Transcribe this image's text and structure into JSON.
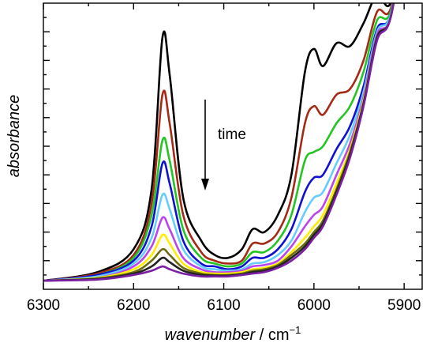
{
  "chart_data": {
    "type": "line",
    "title": "",
    "xlabel": "wavenumber",
    "xlabel_suffix": " / cm",
    "xlabel_exp": "−1",
    "ylabel": "absorbance",
    "x_reversed": true,
    "xlim": [
      6300,
      5880
    ],
    "ylim": [
      0,
      1
    ],
    "x_ticks": [
      6300,
      6200,
      6100,
      6000,
      5900
    ],
    "y_ticks_labeled": false,
    "grid": false,
    "annotation": {
      "text": "time",
      "arrow": "down"
    },
    "series": [
      {
        "color": "#000000",
        "values": [
          [
            6300,
            0.03
          ],
          [
            6240,
            0.06
          ],
          [
            6200,
            0.14
          ],
          [
            6180,
            0.35
          ],
          [
            6168,
            0.88
          ],
          [
            6160,
            0.75
          ],
          [
            6145,
            0.32
          ],
          [
            6125,
            0.17
          ],
          [
            6110,
            0.12
          ],
          [
            6095,
            0.11
          ],
          [
            6080,
            0.14
          ],
          [
            6068,
            0.21
          ],
          [
            6055,
            0.2
          ],
          [
            6040,
            0.26
          ],
          [
            6025,
            0.4
          ],
          [
            6010,
            0.76
          ],
          [
            6000,
            0.84
          ],
          [
            5990,
            0.78
          ],
          [
            5975,
            0.86
          ],
          [
            5960,
            0.85
          ],
          [
            5945,
            0.93
          ],
          [
            5930,
            1.03
          ],
          [
            5915,
            1.0
          ],
          [
            5895,
            1.26
          ]
        ]
      },
      {
        "color": "#a52a16",
        "values": [
          [
            6300,
            0.03
          ],
          [
            6240,
            0.055
          ],
          [
            6200,
            0.12
          ],
          [
            6180,
            0.3
          ],
          [
            6168,
            0.68
          ],
          [
            6160,
            0.58
          ],
          [
            6145,
            0.26
          ],
          [
            6125,
            0.13
          ],
          [
            6110,
            0.1
          ],
          [
            6095,
            0.09
          ],
          [
            6080,
            0.1
          ],
          [
            6068,
            0.16
          ],
          [
            6055,
            0.16
          ],
          [
            6040,
            0.2
          ],
          [
            6025,
            0.32
          ],
          [
            6010,
            0.58
          ],
          [
            6000,
            0.64
          ],
          [
            5990,
            0.61
          ],
          [
            5975,
            0.68
          ],
          [
            5960,
            0.7
          ],
          [
            5945,
            0.8
          ],
          [
            5930,
            0.97
          ],
          [
            5915,
            0.98
          ],
          [
            5895,
            1.27
          ]
        ]
      },
      {
        "color": "#22c522",
        "values": [
          [
            6300,
            0.03
          ],
          [
            6240,
            0.05
          ],
          [
            6200,
            0.11
          ],
          [
            6180,
            0.26
          ],
          [
            6168,
            0.52
          ],
          [
            6160,
            0.45
          ],
          [
            6145,
            0.21
          ],
          [
            6125,
            0.11
          ],
          [
            6110,
            0.09
          ],
          [
            6095,
            0.08
          ],
          [
            6080,
            0.09
          ],
          [
            6068,
            0.13
          ],
          [
            6055,
            0.13
          ],
          [
            6040,
            0.17
          ],
          [
            6025,
            0.26
          ],
          [
            6010,
            0.45
          ],
          [
            6000,
            0.48
          ],
          [
            5990,
            0.5
          ],
          [
            5975,
            0.58
          ],
          [
            5960,
            0.64
          ],
          [
            5945,
            0.76
          ],
          [
            5930,
            0.94
          ],
          [
            5915,
            0.97
          ],
          [
            5895,
            1.28
          ]
        ]
      },
      {
        "color": "#1010d0",
        "values": [
          [
            6300,
            0.03
          ],
          [
            6240,
            0.05
          ],
          [
            6200,
            0.1
          ],
          [
            6180,
            0.22
          ],
          [
            6168,
            0.44
          ],
          [
            6160,
            0.37
          ],
          [
            6145,
            0.17
          ],
          [
            6125,
            0.09
          ],
          [
            6110,
            0.08
          ],
          [
            6095,
            0.07
          ],
          [
            6080,
            0.08
          ],
          [
            6068,
            0.11
          ],
          [
            6055,
            0.11
          ],
          [
            6040,
            0.14
          ],
          [
            6025,
            0.21
          ],
          [
            6010,
            0.34
          ],
          [
            6000,
            0.39
          ],
          [
            5990,
            0.4
          ],
          [
            5975,
            0.49
          ],
          [
            5960,
            0.57
          ],
          [
            5945,
            0.71
          ],
          [
            5930,
            0.91
          ],
          [
            5915,
            0.96
          ],
          [
            5895,
            1.29
          ]
        ]
      },
      {
        "color": "#66ccff",
        "values": [
          [
            6300,
            0.03
          ],
          [
            6240,
            0.045
          ],
          [
            6200,
            0.09
          ],
          [
            6180,
            0.18
          ],
          [
            6168,
            0.33
          ],
          [
            6160,
            0.28
          ],
          [
            6145,
            0.14
          ],
          [
            6125,
            0.08
          ],
          [
            6110,
            0.07
          ],
          [
            6095,
            0.065
          ],
          [
            6080,
            0.07
          ],
          [
            6068,
            0.09
          ],
          [
            6055,
            0.095
          ],
          [
            6040,
            0.12
          ],
          [
            6025,
            0.17
          ],
          [
            6010,
            0.27
          ],
          [
            6000,
            0.32
          ],
          [
            5990,
            0.34
          ],
          [
            5975,
            0.44
          ],
          [
            5960,
            0.54
          ],
          [
            5945,
            0.69
          ],
          [
            5930,
            0.9
          ],
          [
            5915,
            0.96
          ],
          [
            5895,
            1.3
          ]
        ]
      },
      {
        "color": "#bb44ee",
        "values": [
          [
            6300,
            0.03
          ],
          [
            6240,
            0.04
          ],
          [
            6200,
            0.08
          ],
          [
            6180,
            0.15
          ],
          [
            6168,
            0.25
          ],
          [
            6160,
            0.21
          ],
          [
            6145,
            0.11
          ],
          [
            6125,
            0.07
          ],
          [
            6110,
            0.06
          ],
          [
            6095,
            0.06
          ],
          [
            6080,
            0.065
          ],
          [
            6068,
            0.08
          ],
          [
            6055,
            0.085
          ],
          [
            6040,
            0.1
          ],
          [
            6025,
            0.15
          ],
          [
            6010,
            0.22
          ],
          [
            6000,
            0.26
          ],
          [
            5990,
            0.29
          ],
          [
            5975,
            0.4
          ],
          [
            5960,
            0.51
          ],
          [
            5945,
            0.67
          ],
          [
            5930,
            0.89
          ],
          [
            5915,
            0.95
          ],
          [
            5895,
            1.3
          ]
        ]
      },
      {
        "color": "#ffee00",
        "values": [
          [
            6300,
            0.03
          ],
          [
            6240,
            0.04
          ],
          [
            6200,
            0.07
          ],
          [
            6180,
            0.12
          ],
          [
            6168,
            0.19
          ],
          [
            6160,
            0.16
          ],
          [
            6145,
            0.09
          ],
          [
            6125,
            0.06
          ],
          [
            6110,
            0.055
          ],
          [
            6095,
            0.055
          ],
          [
            6080,
            0.06
          ],
          [
            6068,
            0.07
          ],
          [
            6055,
            0.075
          ],
          [
            6040,
            0.09
          ],
          [
            6025,
            0.13
          ],
          [
            6010,
            0.18
          ],
          [
            6000,
            0.22
          ],
          [
            5990,
            0.26
          ],
          [
            5975,
            0.37
          ],
          [
            5960,
            0.49
          ],
          [
            5945,
            0.66
          ],
          [
            5930,
            0.88
          ],
          [
            5915,
            0.95
          ],
          [
            5895,
            1.31
          ]
        ]
      },
      {
        "color": "#6b6b10",
        "values": [
          [
            6300,
            0.03
          ],
          [
            6240,
            0.038
          ],
          [
            6200,
            0.06
          ],
          [
            6180,
            0.1
          ],
          [
            6168,
            0.14
          ],
          [
            6160,
            0.12
          ],
          [
            6145,
            0.075
          ],
          [
            6125,
            0.055
          ],
          [
            6110,
            0.05
          ],
          [
            6095,
            0.05
          ],
          [
            6080,
            0.055
          ],
          [
            6068,
            0.065
          ],
          [
            6055,
            0.07
          ],
          [
            6040,
            0.085
          ],
          [
            6025,
            0.12
          ],
          [
            6010,
            0.16
          ],
          [
            6000,
            0.2
          ],
          [
            5990,
            0.24
          ],
          [
            5975,
            0.35
          ],
          [
            5960,
            0.48
          ],
          [
            5945,
            0.65
          ],
          [
            5930,
            0.88
          ],
          [
            5915,
            0.95
          ],
          [
            5895,
            1.31
          ]
        ]
      },
      {
        "color": "#222222",
        "values": [
          [
            6300,
            0.03
          ],
          [
            6240,
            0.036
          ],
          [
            6200,
            0.055
          ],
          [
            6180,
            0.08
          ],
          [
            6168,
            0.11
          ],
          [
            6160,
            0.095
          ],
          [
            6145,
            0.065
          ],
          [
            6125,
            0.05
          ],
          [
            6110,
            0.048
          ],
          [
            6095,
            0.048
          ],
          [
            6080,
            0.052
          ],
          [
            6068,
            0.06
          ],
          [
            6055,
            0.065
          ],
          [
            6040,
            0.08
          ],
          [
            6025,
            0.11
          ],
          [
            6010,
            0.15
          ],
          [
            6000,
            0.19
          ],
          [
            5990,
            0.23
          ],
          [
            5975,
            0.34
          ],
          [
            5960,
            0.47
          ],
          [
            5945,
            0.65
          ],
          [
            5930,
            0.88
          ],
          [
            5915,
            0.95
          ],
          [
            5895,
            1.32
          ]
        ]
      },
      {
        "color": "#7a1fa2",
        "values": [
          [
            6300,
            0.03
          ],
          [
            6240,
            0.034
          ],
          [
            6200,
            0.05
          ],
          [
            6180,
            0.065
          ],
          [
            6168,
            0.08
          ],
          [
            6160,
            0.07
          ],
          [
            6145,
            0.055
          ],
          [
            6125,
            0.045
          ],
          [
            6110,
            0.045
          ],
          [
            6095,
            0.045
          ],
          [
            6080,
            0.05
          ],
          [
            6068,
            0.055
          ],
          [
            6055,
            0.06
          ],
          [
            6040,
            0.075
          ],
          [
            6025,
            0.1
          ],
          [
            6010,
            0.14
          ],
          [
            6000,
            0.18
          ],
          [
            5990,
            0.22
          ],
          [
            5975,
            0.33
          ],
          [
            5960,
            0.46
          ],
          [
            5945,
            0.64
          ],
          [
            5930,
            0.87
          ],
          [
            5915,
            0.95
          ],
          [
            5895,
            1.32
          ]
        ]
      }
    ]
  }
}
